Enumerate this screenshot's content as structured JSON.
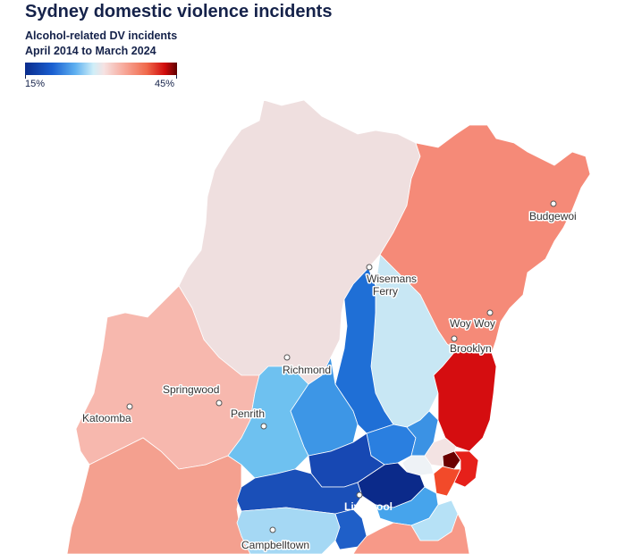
{
  "header": {
    "title": "Sydney domestic violence incidents",
    "subtitle_line1": "Alcohol-related DV incidents",
    "subtitle_line2": "April 2014 to March 2024"
  },
  "legend": {
    "min_label": "15%",
    "max_label": "45%",
    "colors": [
      "#0a2c8c",
      "#1a5fd1",
      "#5eb0f0",
      "#cfeef8",
      "#f6e2e2",
      "#f7a596",
      "#f06a4c",
      "#d10c0c",
      "#5e0000"
    ]
  },
  "places": {
    "budgewoi": "Budgewoi",
    "wisemans_ferry_1": "Wisemans",
    "wisemans_ferry_2": "Ferry",
    "woy_woy": "Woy Woy",
    "brooklyn": "Brooklyn",
    "richmond": "Richmond",
    "springwood": "Springwood",
    "katoomba": "Katoomba",
    "penrith": "Penrith",
    "liverpool": "Liverpool",
    "campbelltown": "Campbelltown"
  }
}
